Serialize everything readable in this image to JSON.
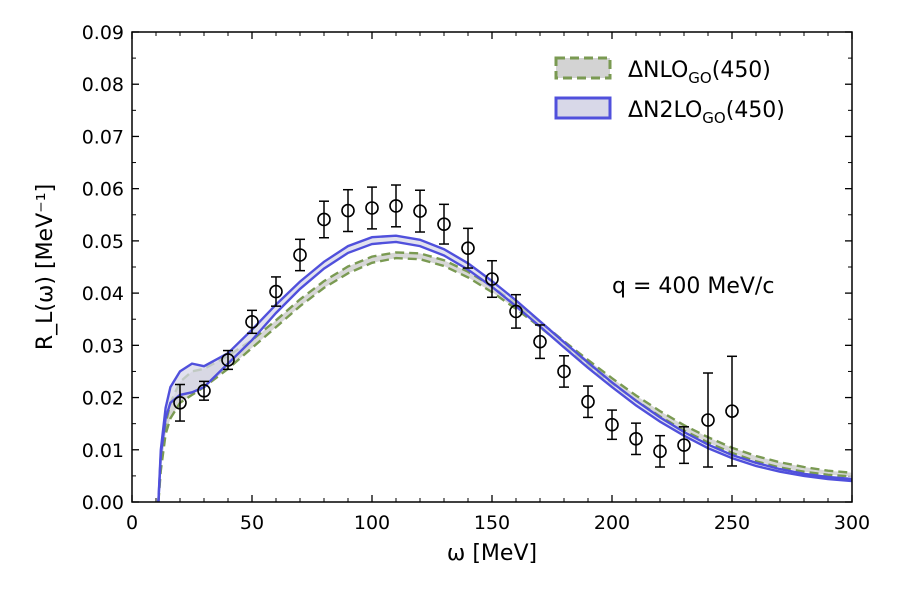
{
  "chart_data": {
    "type": "line",
    "xlabel": "ω  [MeV]",
    "ylabel": "R_L(ω)  [MeV⁻¹]",
    "xlim": [
      0,
      300
    ],
    "ylim": [
      0,
      0.09
    ],
    "xticks": [
      0,
      50,
      100,
      150,
      200,
      250,
      300
    ],
    "xtick_labels": [
      "0",
      "50",
      "100",
      "150",
      "200",
      "250",
      "300"
    ],
    "yticks": [
      0,
      0.01,
      0.02,
      0.03,
      0.04,
      0.05,
      0.06,
      0.07,
      0.08,
      0.09
    ],
    "ytick_labels": [
      "0.00",
      "0.01",
      "0.02",
      "0.03",
      "0.04",
      "0.05",
      "0.06",
      "0.07",
      "0.08",
      "0.09"
    ],
    "annotation": "q = 400 MeV/c",
    "legend_position": "top-right",
    "series": [
      {
        "name": "ΔNLO_GO(450)",
        "name_main": "ΔNLO",
        "name_sub": "GO",
        "name_tail": "(450)",
        "style": "dashed-band",
        "color": "#7a9a52",
        "fill": "#d3d3d3",
        "x": [
          11,
          12,
          14,
          16,
          20,
          25,
          30,
          40,
          50,
          60,
          70,
          80,
          90,
          100,
          110,
          120,
          130,
          140,
          150,
          160,
          170,
          180,
          190,
          200,
          210,
          220,
          230,
          240,
          250,
          260,
          270,
          280,
          290,
          300
        ],
        "lower": [
          0.0,
          0.006,
          0.013,
          0.016,
          0.019,
          0.0205,
          0.022,
          0.0255,
          0.0295,
          0.0335,
          0.0375,
          0.041,
          0.0438,
          0.0458,
          0.0467,
          0.0465,
          0.0452,
          0.043,
          0.0402,
          0.037,
          0.0335,
          0.0298,
          0.0262,
          0.0227,
          0.0194,
          0.0164,
          0.0137,
          0.0114,
          0.0094,
          0.0078,
          0.0066,
          0.0058,
          0.0052,
          0.0049
        ],
        "upper": [
          0.0,
          0.007,
          0.015,
          0.019,
          0.023,
          0.025,
          0.0255,
          0.028,
          0.031,
          0.0348,
          0.0388,
          0.0423,
          0.0451,
          0.047,
          0.0478,
          0.0476,
          0.0463,
          0.0441,
          0.0413,
          0.038,
          0.0345,
          0.0308,
          0.0272,
          0.0237,
          0.0204,
          0.0174,
          0.0147,
          0.0124,
          0.0104,
          0.0088,
          0.0076,
          0.0067,
          0.006,
          0.0056
        ]
      },
      {
        "name": "ΔN2LO_GO(450)",
        "name_main": "ΔN2LO",
        "name_sub": "GO",
        "name_tail": "(450)",
        "style": "solid-band",
        "color": "#5050dc",
        "fill": "#d8d8e8",
        "x": [
          11,
          12,
          14,
          16,
          20,
          25,
          30,
          40,
          50,
          60,
          70,
          80,
          90,
          100,
          110,
          120,
          130,
          140,
          150,
          160,
          170,
          180,
          190,
          200,
          210,
          220,
          230,
          240,
          250,
          260,
          270,
          280,
          290,
          300
        ],
        "lower": [
          0.0,
          0.009,
          0.016,
          0.019,
          0.0205,
          0.021,
          0.022,
          0.0265,
          0.031,
          0.0362,
          0.0408,
          0.0447,
          0.0477,
          0.0494,
          0.0498,
          0.049,
          0.0472,
          0.0445,
          0.0412,
          0.0375,
          0.0336,
          0.0296,
          0.0257,
          0.022,
          0.0185,
          0.0154,
          0.0127,
          0.0103,
          0.0084,
          0.0069,
          0.0058,
          0.005,
          0.0044,
          0.004
        ],
        "upper": [
          0.0,
          0.01,
          0.018,
          0.022,
          0.025,
          0.0265,
          0.026,
          0.0285,
          0.033,
          0.0378,
          0.0422,
          0.046,
          0.049,
          0.0507,
          0.051,
          0.0502,
          0.0484,
          0.0457,
          0.0423,
          0.0386,
          0.0346,
          0.0306,
          0.0267,
          0.0229,
          0.0194,
          0.0162,
          0.0134,
          0.011,
          0.009,
          0.0075,
          0.0063,
          0.0054,
          0.0048,
          0.0044
        ]
      },
      {
        "name": "data",
        "style": "errorbar-points",
        "color": "#000000",
        "x": [
          20,
          30,
          40,
          50,
          60,
          70,
          80,
          90,
          100,
          110,
          120,
          130,
          140,
          150,
          160,
          170,
          180,
          190,
          200,
          210,
          220,
          230,
          240,
          250
        ],
        "y": [
          0.019,
          0.0213,
          0.0272,
          0.0345,
          0.0403,
          0.0473,
          0.0541,
          0.0558,
          0.0563,
          0.0567,
          0.0557,
          0.0532,
          0.0486,
          0.0427,
          0.0365,
          0.0307,
          0.025,
          0.0192,
          0.0148,
          0.0121,
          0.0097,
          0.0109,
          0.0157,
          0.0174
        ],
        "yerr": [
          0.0035,
          0.0018,
          0.0018,
          0.0022,
          0.0028,
          0.003,
          0.0035,
          0.004,
          0.004,
          0.004,
          0.004,
          0.0038,
          0.0038,
          0.0035,
          0.0032,
          0.0032,
          0.003,
          0.003,
          0.0028,
          0.003,
          0.003,
          0.0035,
          0.009,
          0.0105
        ]
      }
    ]
  }
}
